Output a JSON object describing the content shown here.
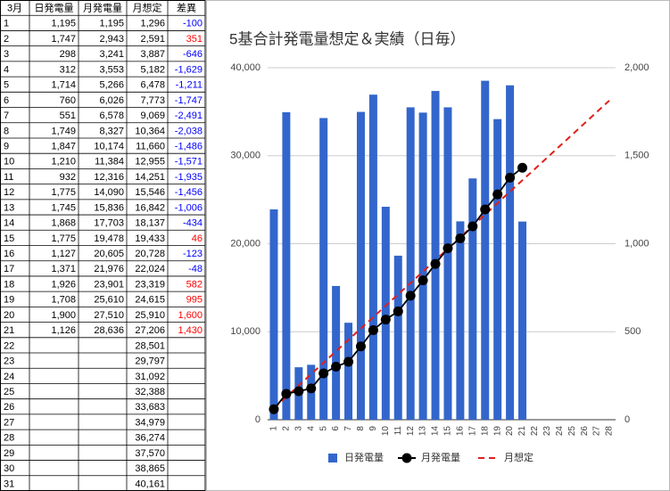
{
  "table": {
    "header": [
      "3月",
      "日発電量",
      "月発電量",
      "月想定",
      "差異"
    ],
    "rows": [
      [
        "1",
        "1,195",
        "1,195",
        "1,296",
        "-100"
      ],
      [
        "2",
        "1,747",
        "2,943",
        "2,591",
        "351"
      ],
      [
        "3",
        "298",
        "3,241",
        "3,887",
        "-646"
      ],
      [
        "4",
        "312",
        "3,553",
        "5,182",
        "-1,629"
      ],
      [
        "5",
        "1,714",
        "5,266",
        "6,478",
        "-1,211"
      ],
      [
        "6",
        "760",
        "6,026",
        "7,773",
        "-1,747"
      ],
      [
        "7",
        "551",
        "6,578",
        "9,069",
        "-2,491"
      ],
      [
        "8",
        "1,749",
        "8,327",
        "10,364",
        "-2,038"
      ],
      [
        "9",
        "1,847",
        "10,174",
        "11,660",
        "-1,486"
      ],
      [
        "10",
        "1,210",
        "11,384",
        "12,955",
        "-1,571"
      ],
      [
        "11",
        "932",
        "12,316",
        "14,251",
        "-1,935"
      ],
      [
        "12",
        "1,775",
        "14,090",
        "15,546",
        "-1,456"
      ],
      [
        "13",
        "1,745",
        "15,836",
        "16,842",
        "-1,006"
      ],
      [
        "14",
        "1,868",
        "17,703",
        "18,137",
        "-434"
      ],
      [
        "15",
        "1,775",
        "19,478",
        "19,433",
        "46"
      ],
      [
        "16",
        "1,127",
        "20,605",
        "20,728",
        "-123"
      ],
      [
        "17",
        "1,371",
        "21,976",
        "22,024",
        "-48"
      ],
      [
        "18",
        "1,926",
        "23,901",
        "23,319",
        "582"
      ],
      [
        "19",
        "1,708",
        "25,610",
        "24,615",
        "995"
      ],
      [
        "20",
        "1,900",
        "27,510",
        "25,910",
        "1,600"
      ],
      [
        "21",
        "1,126",
        "28,636",
        "27,206",
        "1,430"
      ],
      [
        "22",
        null,
        null,
        "28,501",
        null
      ],
      [
        "23",
        null,
        null,
        "29,797",
        null
      ],
      [
        "24",
        null,
        null,
        "31,092",
        null
      ],
      [
        "25",
        null,
        null,
        "32,388",
        null
      ],
      [
        "26",
        null,
        null,
        "33,683",
        null
      ],
      [
        "27",
        null,
        null,
        "34,979",
        null
      ],
      [
        "28",
        null,
        null,
        "36,274",
        null
      ],
      [
        "29",
        null,
        null,
        "37,570",
        null
      ],
      [
        "30",
        null,
        null,
        "38,865",
        null
      ],
      [
        "31",
        null,
        null,
        "40,161",
        null
      ]
    ]
  },
  "chart_data": {
    "type": "combo",
    "title": "5基合計発電量想定＆実績（日毎）",
    "categories": [
      "1",
      "2",
      "3",
      "4",
      "5",
      "6",
      "7",
      "8",
      "9",
      "10",
      "11",
      "12",
      "13",
      "14",
      "15",
      "16",
      "17",
      "18",
      "19",
      "20",
      "21",
      "22",
      "23",
      "24",
      "25",
      "26",
      "27",
      "28"
    ],
    "series": [
      {
        "name": "日発電量",
        "type": "bar",
        "axis": "y2",
        "color": "#3366cc",
        "values": [
          1195,
          1747,
          298,
          312,
          1714,
          760,
          551,
          1749,
          1847,
          1210,
          932,
          1775,
          1745,
          1868,
          1775,
          1127,
          1371,
          1926,
          1708,
          1900,
          1126,
          null,
          null,
          null,
          null,
          null,
          null,
          null
        ]
      },
      {
        "name": "月発電量",
        "type": "line",
        "marker": true,
        "color": "#000000",
        "values": [
          1195,
          2943,
          3241,
          3553,
          5266,
          6026,
          6578,
          8327,
          10174,
          11384,
          12316,
          14090,
          15836,
          17703,
          19478,
          20605,
          21976,
          23901,
          25610,
          27510,
          28636,
          null,
          null,
          null,
          null,
          null,
          null,
          null
        ]
      },
      {
        "name": "月想定",
        "type": "line",
        "dashed": true,
        "color": "#e0201c",
        "values": [
          1296,
          2591,
          3887,
          5182,
          6478,
          7773,
          9069,
          10364,
          11660,
          12955,
          14251,
          15546,
          16842,
          18137,
          19433,
          20728,
          22024,
          23319,
          24615,
          25910,
          27206,
          28501,
          29797,
          31092,
          32388,
          33683,
          34979,
          36274
        ]
      }
    ],
    "ylim": [
      0,
      40000
    ],
    "yticks": [
      0,
      {
        "value": 10000,
        "label": "10,000"
      },
      {
        "value": 20000,
        "label": "20,000"
      },
      {
        "value": 30000,
        "label": "30,000"
      },
      {
        "value": 40000,
        "label": "40,000"
      }
    ],
    "y2lim": [
      0,
      2000
    ],
    "y2ticks": [
      0,
      500,
      {
        "value": 1000,
        "label": "1,000"
      },
      {
        "value": 1500,
        "label": "1,500"
      },
      {
        "value": 2000,
        "label": "2,000"
      }
    ],
    "grid": true,
    "legend": "bottom"
  }
}
